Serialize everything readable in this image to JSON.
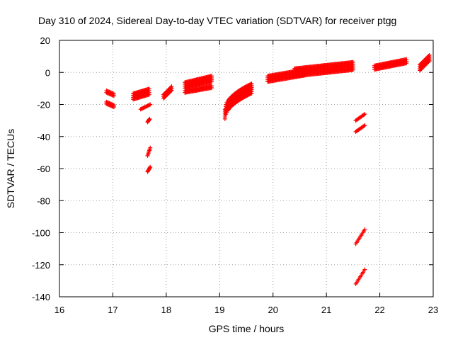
{
  "chart_data": {
    "type": "scatter",
    "title": "Day 310 of 2024, Sidereal Day-to-day VTEC variation (SDTVAR) for receiver ptgg",
    "xlabel": "GPS time / hours",
    "ylabel": "SDTVAR / TECUs",
    "xlim": [
      16,
      23
    ],
    "ylim": [
      -140,
      20
    ],
    "xticks": [
      16,
      17,
      18,
      19,
      20,
      21,
      22,
      23
    ],
    "yticks": [
      20,
      0,
      -20,
      -40,
      -60,
      -80,
      -100,
      -120,
      -140
    ],
    "grid": true,
    "marker": "plus",
    "marker_color": "#ff0000",
    "series": [
      {
        "name": "arc-16.9a",
        "x0": 16.88,
        "x1": 17.02,
        "y0": -12,
        "y1": -14,
        "band": 2
      },
      {
        "name": "arc-16.9b",
        "x0": 16.88,
        "x1": 17.02,
        "y0": -19,
        "y1": -21,
        "band": 2
      },
      {
        "name": "arc-17.5",
        "x0": 17.38,
        "x1": 17.68,
        "y0": -15,
        "y1": -12,
        "band": 4
      },
      {
        "name": "arc-17.6",
        "x0": 17.52,
        "x1": 17.7,
        "y0": -23,
        "y1": -20,
        "band": 1
      },
      {
        "name": "arc-17.67a",
        "x0": 17.65,
        "x1": 17.69,
        "y0": -31,
        "y1": -29,
        "band": 1
      },
      {
        "name": "arc-17.67b",
        "x0": 17.65,
        "x1": 17.7,
        "y0": -52,
        "y1": -47,
        "band": 1
      },
      {
        "name": "arc-17.67c",
        "x0": 17.65,
        "x1": 17.7,
        "y0": -62,
        "y1": -59,
        "band": 1
      },
      {
        "name": "arc-18.0",
        "x0": 17.95,
        "x1": 18.1,
        "y0": -15,
        "y1": -10,
        "band": 3
      },
      {
        "name": "arc-18.5",
        "x0": 18.35,
        "x1": 18.85,
        "y0": -8,
        "y1": -4,
        "band": 4
      },
      {
        "name": "arc-18.6",
        "x0": 18.35,
        "x1": 18.85,
        "y0": -12,
        "y1": -9,
        "band": 2
      },
      {
        "name": "arc-19.3",
        "x0": 19.1,
        "x1": 19.6,
        "y0": -26,
        "y1": -10,
        "band": 6,
        "curve": true
      },
      {
        "name": "arc-20.1",
        "x0": 19.9,
        "x1": 20.6,
        "y0": -4,
        "y1": 0,
        "band": 4
      },
      {
        "name": "arc-20.9",
        "x0": 20.4,
        "x1": 21.5,
        "y0": 0,
        "y1": 4,
        "band": 5
      },
      {
        "name": "arc-21.6a",
        "x0": 21.55,
        "x1": 21.72,
        "y0": -30,
        "y1": -26,
        "band": 1
      },
      {
        "name": "arc-21.6b",
        "x0": 21.55,
        "x1": 21.72,
        "y0": -37,
        "y1": -33,
        "band": 1
      },
      {
        "name": "arc-21.6c",
        "x0": 21.55,
        "x1": 21.72,
        "y0": -107,
        "y1": -98,
        "band": 1
      },
      {
        "name": "arc-21.6d",
        "x0": 21.55,
        "x1": 21.72,
        "y0": -132,
        "y1": -123,
        "band": 1
      },
      {
        "name": "arc-22.2",
        "x0": 21.9,
        "x1": 22.5,
        "y0": 3,
        "y1": 7,
        "band": 3
      },
      {
        "name": "arc-22.9",
        "x0": 22.75,
        "x1": 22.93,
        "y0": 3,
        "y1": 9,
        "band": 4
      }
    ]
  }
}
